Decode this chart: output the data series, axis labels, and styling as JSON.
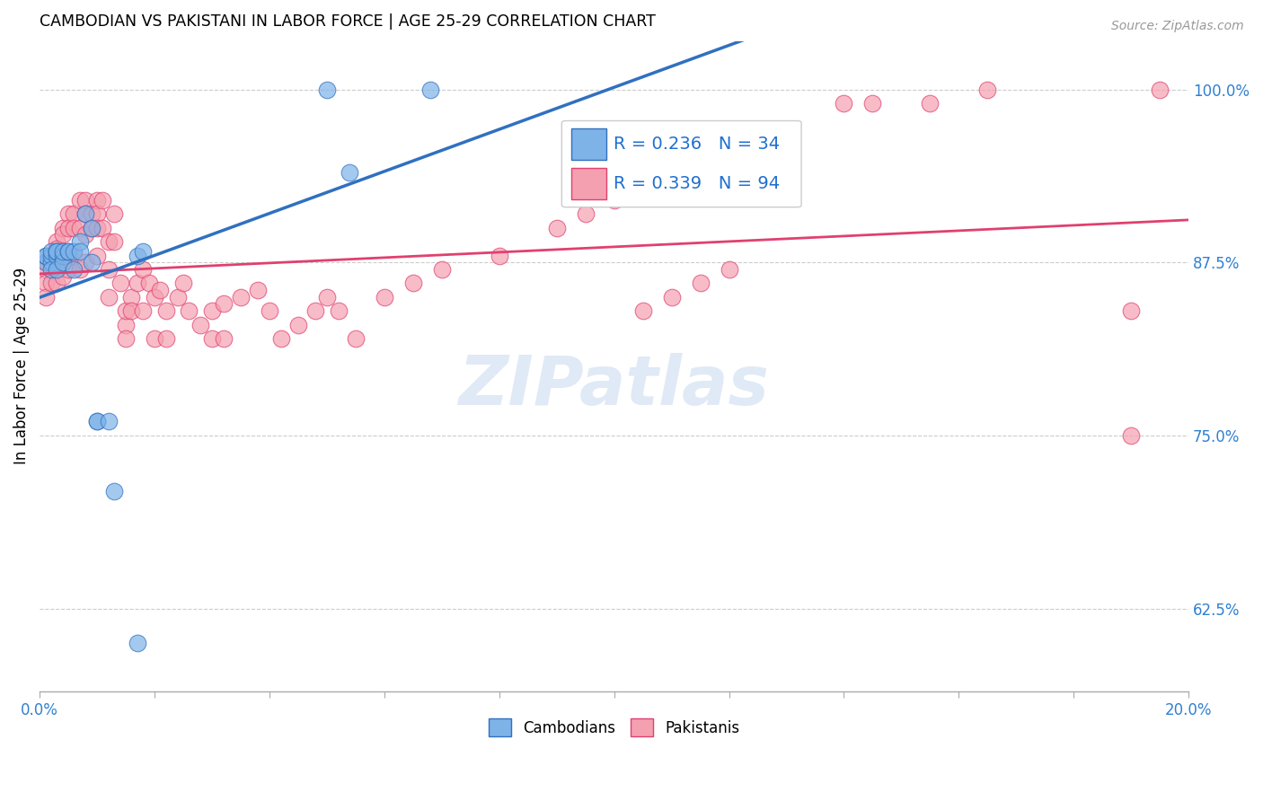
{
  "title": "CAMBODIAN VS PAKISTANI IN LABOR FORCE | AGE 25-29 CORRELATION CHART",
  "source": "Source: ZipAtlas.com",
  "ylabel": "In Labor Force | Age 25-29",
  "watermark": "ZIPatlas",
  "cambodian_color": "#7EB3E8",
  "pakistani_color": "#F4A0B0",
  "trendline_cambodian": "#3070C0",
  "trendline_pakistani": "#E04070",
  "R_cambodian": 0.236,
  "N_cambodian": 34,
  "R_pakistani": 0.339,
  "N_pakistani": 94,
  "xlim": [
    0.0,
    0.2
  ],
  "ylim": [
    0.565,
    1.035
  ],
  "xticks": [
    0.0,
    0.02,
    0.04,
    0.06,
    0.08,
    0.1,
    0.12,
    0.14,
    0.16,
    0.18,
    0.2
  ],
  "yticks": [
    0.625,
    0.75,
    0.875,
    1.0
  ],
  "ytick_labels": [
    "62.5%",
    "75.0%",
    "87.5%",
    "100.0%"
  ],
  "cambodian_x": [
    0.001,
    0.001,
    0.001,
    0.002,
    0.002,
    0.002,
    0.002,
    0.003,
    0.003,
    0.003,
    0.003,
    0.003,
    0.004,
    0.004,
    0.004,
    0.005,
    0.005,
    0.006,
    0.006,
    0.007,
    0.007,
    0.008,
    0.009,
    0.009,
    0.01,
    0.01,
    0.012,
    0.013,
    0.017,
    0.017,
    0.018,
    0.05,
    0.054,
    0.068
  ],
  "cambodian_y": [
    0.875,
    0.88,
    0.88,
    0.875,
    0.88,
    0.883,
    0.87,
    0.88,
    0.883,
    0.883,
    0.883,
    0.87,
    0.88,
    0.875,
    0.883,
    0.883,
    0.883,
    0.883,
    0.87,
    0.89,
    0.883,
    0.91,
    0.9,
    0.875,
    0.76,
    0.76,
    0.76,
    0.71,
    0.6,
    0.88,
    0.883,
    1.0,
    0.94,
    1.0
  ],
  "pakistani_x": [
    0.001,
    0.001,
    0.001,
    0.001,
    0.002,
    0.002,
    0.002,
    0.003,
    0.003,
    0.003,
    0.003,
    0.003,
    0.004,
    0.004,
    0.004,
    0.004,
    0.004,
    0.005,
    0.005,
    0.005,
    0.005,
    0.006,
    0.006,
    0.006,
    0.007,
    0.007,
    0.007,
    0.008,
    0.008,
    0.008,
    0.008,
    0.009,
    0.009,
    0.01,
    0.01,
    0.01,
    0.01,
    0.011,
    0.011,
    0.012,
    0.012,
    0.012,
    0.013,
    0.013,
    0.014,
    0.015,
    0.015,
    0.015,
    0.016,
    0.016,
    0.017,
    0.018,
    0.018,
    0.019,
    0.02,
    0.02,
    0.021,
    0.022,
    0.022,
    0.024,
    0.025,
    0.026,
    0.028,
    0.03,
    0.03,
    0.032,
    0.032,
    0.035,
    0.038,
    0.04,
    0.042,
    0.045,
    0.048,
    0.05,
    0.052,
    0.055,
    0.06,
    0.065,
    0.07,
    0.08,
    0.09,
    0.095,
    0.1,
    0.105,
    0.11,
    0.115,
    0.12,
    0.14,
    0.145,
    0.155,
    0.165,
    0.19,
    0.19,
    0.195
  ],
  "pakistani_y": [
    0.875,
    0.87,
    0.86,
    0.85,
    0.875,
    0.875,
    0.86,
    0.89,
    0.885,
    0.88,
    0.875,
    0.86,
    0.9,
    0.895,
    0.88,
    0.875,
    0.865,
    0.91,
    0.9,
    0.88,
    0.87,
    0.91,
    0.9,
    0.88,
    0.92,
    0.9,
    0.87,
    0.92,
    0.91,
    0.895,
    0.875,
    0.91,
    0.9,
    0.92,
    0.91,
    0.9,
    0.88,
    0.92,
    0.9,
    0.89,
    0.87,
    0.85,
    0.91,
    0.89,
    0.86,
    0.83,
    0.84,
    0.82,
    0.85,
    0.84,
    0.86,
    0.87,
    0.84,
    0.86,
    0.85,
    0.82,
    0.855,
    0.84,
    0.82,
    0.85,
    0.86,
    0.84,
    0.83,
    0.84,
    0.82,
    0.845,
    0.82,
    0.85,
    0.855,
    0.84,
    0.82,
    0.83,
    0.84,
    0.85,
    0.84,
    0.82,
    0.85,
    0.86,
    0.87,
    0.88,
    0.9,
    0.91,
    0.92,
    0.84,
    0.85,
    0.86,
    0.87,
    0.99,
    0.99,
    0.99,
    1.0,
    0.84,
    0.75,
    1.0
  ]
}
